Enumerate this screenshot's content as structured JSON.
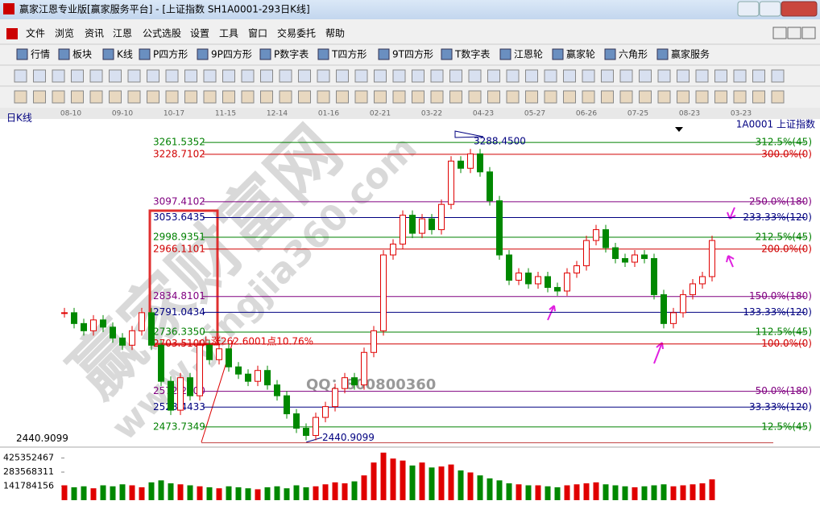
{
  "window": {
    "title": "赢家江恩专业版[赢家服务平台] - [上证指数  SH1A0001-293日K线]",
    "menu": [
      "文件",
      "浏览",
      "资讯",
      "江恩",
      "公式选股",
      "设置",
      "工具",
      "窗口",
      "交易委托",
      "帮助"
    ],
    "toolbar": [
      "行情",
      "板块",
      "K线",
      "P四方形",
      "9P四方形",
      "P数字表",
      "T四方形",
      "9T四方形",
      "T数字表",
      "江恩轮",
      "赢家轮",
      "六角形",
      "赢家服务"
    ]
  },
  "chart_data": {
    "type": "candlestick",
    "title": "日K线",
    "symbol": "1A0001  上证指数",
    "x_labels": [
      "08-10",
      "09-10",
      "10-17",
      "11-15",
      "12-14",
      "01-16",
      "02-21",
      "03-22",
      "04-23",
      "05-27",
      "06-26",
      "07-25",
      "08-23",
      "03-23"
    ],
    "ylim": [
      2420,
      3322
    ],
    "close": [
      2790,
      2760,
      2740,
      2770,
      2750,
      2720,
      2700,
      2740,
      2790,
      2700,
      2600,
      2520,
      2610,
      2560,
      2700,
      2660,
      2690,
      2640,
      2620,
      2600,
      2630,
      2590,
      2560,
      2510,
      2470,
      2450,
      2500,
      2530,
      2580,
      2610,
      2590,
      2680,
      2740,
      2950,
      2980,
      3060,
      3010,
      3050,
      3020,
      3090,
      3210,
      3190,
      3230,
      3180,
      3100,
      2950,
      2880,
      2900,
      2870,
      2890,
      2860,
      2850,
      2900,
      2920,
      2990,
      3020,
      2970,
      2940,
      2930,
      2950,
      2940,
      2840,
      2760,
      2790,
      2840,
      2870,
      2890,
      2990
    ],
    "up_color": "#e00000",
    "down_color": "#008800",
    "levels": [
      {
        "value": 3261.5352,
        "label": "3261.5352",
        "ratio_label": "312.5%(45)",
        "color": "#008000"
      },
      {
        "value": 3228.7102,
        "label": "3228.7102",
        "ratio_label": "300.0%(0)",
        "color": "#d00000"
      },
      {
        "value": 3097.4102,
        "label": "3097.4102",
        "ratio_label": "250.0%(180)",
        "color": "#800080"
      },
      {
        "value": 3053.6435,
        "label": "3053.6435",
        "ratio_label": "233.33%(120)",
        "color": "#000080"
      },
      {
        "value": 2998.9351,
        "label": "2998.9351",
        "ratio_label": "212.5%(45)",
        "color": "#008000"
      },
      {
        "value": 2966.1101,
        "label": "2966.1101",
        "ratio_label": "200.0%(0)",
        "color": "#d00000"
      },
      {
        "value": 2834.8101,
        "label": "2834.8101",
        "ratio_label": "150.0%(180)",
        "color": "#800080"
      },
      {
        "value": 2791.0434,
        "label": "2791.0434",
        "ratio_label": "133.33%(120)",
        "color": "#000080"
      },
      {
        "value": 2736.335,
        "label": "2736.3350",
        "ratio_label": "112.5%(45)",
        "color": "#008000"
      },
      {
        "value": 2703.51,
        "label": "2703.5100",
        "ratio_label": "100.0%(0)",
        "color": "#d00000"
      },
      {
        "value": 2572.21,
        "label": "2572.2100",
        "ratio_label": "50.0%(180)",
        "color": "#800080"
      },
      {
        "value": 2528.4433,
        "label": "2528.4433",
        "ratio_label": "33.33%(120)",
        "color": "#000080"
      },
      {
        "value": 2473.7349,
        "label": "2473.7349",
        "ratio_label": "12.5%(45)",
        "color": "#008000"
      }
    ],
    "high": {
      "value": 3288.45,
      "label": "3288.4500"
    },
    "low": {
      "value": 2440.9099,
      "label": "2440.9099"
    },
    "rise_annotation": "上涨262.6001点10.76%",
    "volume": [
      150000000,
      130000000,
      140000000,
      120000000,
      150000000,
      140000000,
      160000000,
      150000000,
      130000000,
      180000000,
      200000000,
      170000000,
      160000000,
      150000000,
      140000000,
      130000000,
      120000000,
      140000000,
      130000000,
      120000000,
      110000000,
      130000000,
      140000000,
      120000000,
      150000000,
      130000000,
      140000000,
      160000000,
      180000000,
      170000000,
      190000000,
      250000000,
      380000000,
      480000000,
      420000000,
      400000000,
      350000000,
      380000000,
      330000000,
      340000000,
      360000000,
      300000000,
      280000000,
      250000000,
      220000000,
      200000000,
      170000000,
      160000000,
      150000000,
      150000000,
      140000000,
      130000000,
      150000000,
      160000000,
      170000000,
      180000000,
      160000000,
      150000000,
      140000000,
      130000000,
      140000000,
      150000000,
      160000000,
      140000000,
      150000000,
      160000000,
      170000000,
      210000000
    ],
    "volume_ylim": [
      0,
      560000000
    ],
    "volume_ticks": [
      425352467,
      283568311,
      141784156
    ]
  },
  "watermark": {
    "brand": "赢家财富网",
    "url": "www.yingjia360.com",
    "qq": "QQ：800800360"
  }
}
